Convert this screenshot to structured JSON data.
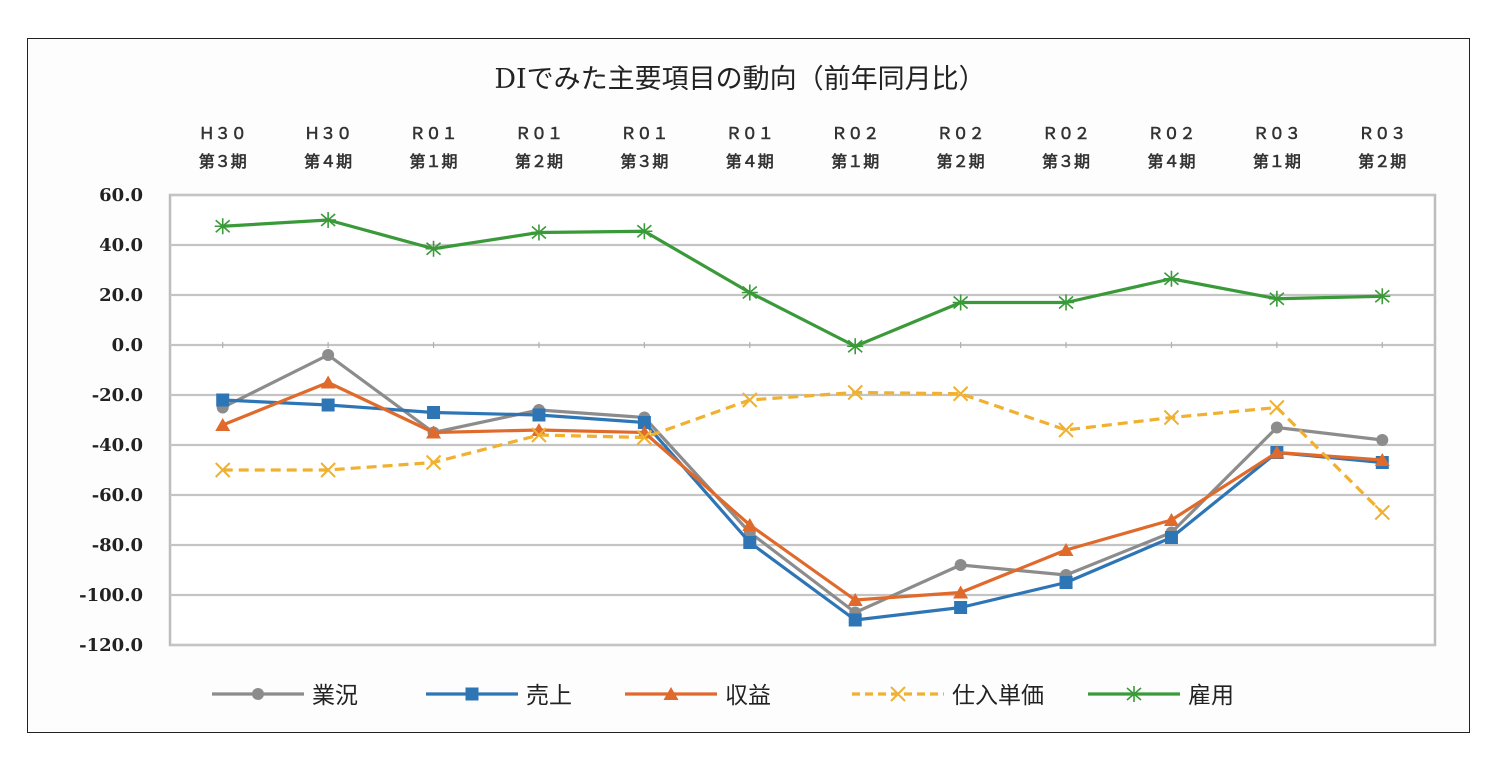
{
  "chart_data": {
    "type": "line",
    "title": "DIでみた主要項目の動向（前年同月比）",
    "xlabel": "",
    "ylabel": "",
    "ylim": [
      -120,
      60
    ],
    "yticks": [
      "60.0",
      "40.0",
      "20.0",
      "0.0",
      "-20.0",
      "-40.0",
      "-60.0",
      "-80.0",
      "-100.0",
      "-120.0"
    ],
    "ytick_values": [
      60,
      40,
      20,
      0,
      -20,
      -40,
      -60,
      -80,
      -100,
      -120
    ],
    "grid": true,
    "legend_position": "bottom",
    "categories": [
      {
        "line1": "Ｈ３０",
        "line2": "第３期"
      },
      {
        "line1": "Ｈ３０",
        "line2": "第４期"
      },
      {
        "line1": "Ｒ０１",
        "line2": "第１期"
      },
      {
        "line1": "Ｒ０１",
        "line2": "第２期"
      },
      {
        "line1": "Ｒ０１",
        "line2": "第３期"
      },
      {
        "line1": "Ｒ０１",
        "line2": "第４期"
      },
      {
        "line1": "Ｒ０２",
        "line2": "第１期"
      },
      {
        "line1": "Ｒ０２",
        "line2": "第２期"
      },
      {
        "line1": "Ｒ０２",
        "line2": "第３期"
      },
      {
        "line1": "Ｒ０２",
        "line2": "第４期"
      },
      {
        "line1": "Ｒ０３",
        "line2": "第１期"
      },
      {
        "line1": "Ｒ０３",
        "line2": "第２期"
      }
    ],
    "series": [
      {
        "name": "業況",
        "color": "#8c8c8c",
        "marker": "circle",
        "dashed": false,
        "values": [
          -25,
          -4,
          -35,
          -26,
          -29,
          -75,
          -107,
          -88,
          -92,
          -75,
          -33,
          -38
        ]
      },
      {
        "name": "売上",
        "color": "#2e75b6",
        "marker": "square",
        "dashed": false,
        "values": [
          -22,
          -24,
          -27,
          -28,
          -31,
          -79,
          -110,
          -105,
          -95,
          -77,
          -43,
          -47
        ]
      },
      {
        "name": "収益",
        "color": "#e06a2c",
        "marker": "triangle",
        "dashed": false,
        "values": [
          -32,
          -15,
          -35,
          -34,
          -35,
          -72,
          -102,
          -99,
          -82,
          -70,
          -43,
          -46
        ]
      },
      {
        "name": "仕入単価",
        "color": "#f0b030",
        "marker": "x",
        "dashed": true,
        "values": [
          -50,
          -50,
          -47,
          -36,
          -37,
          -22,
          -19,
          -19.5,
          -34,
          -29,
          -25,
          -67
        ]
      },
      {
        "name": "雇用",
        "color": "#3a9a3a",
        "marker": "star",
        "dashed": false,
        "values": [
          47.5,
          50,
          38.5,
          45,
          45.5,
          21,
          -0.5,
          17,
          17,
          26.5,
          18.5,
          19.5
        ]
      }
    ]
  }
}
